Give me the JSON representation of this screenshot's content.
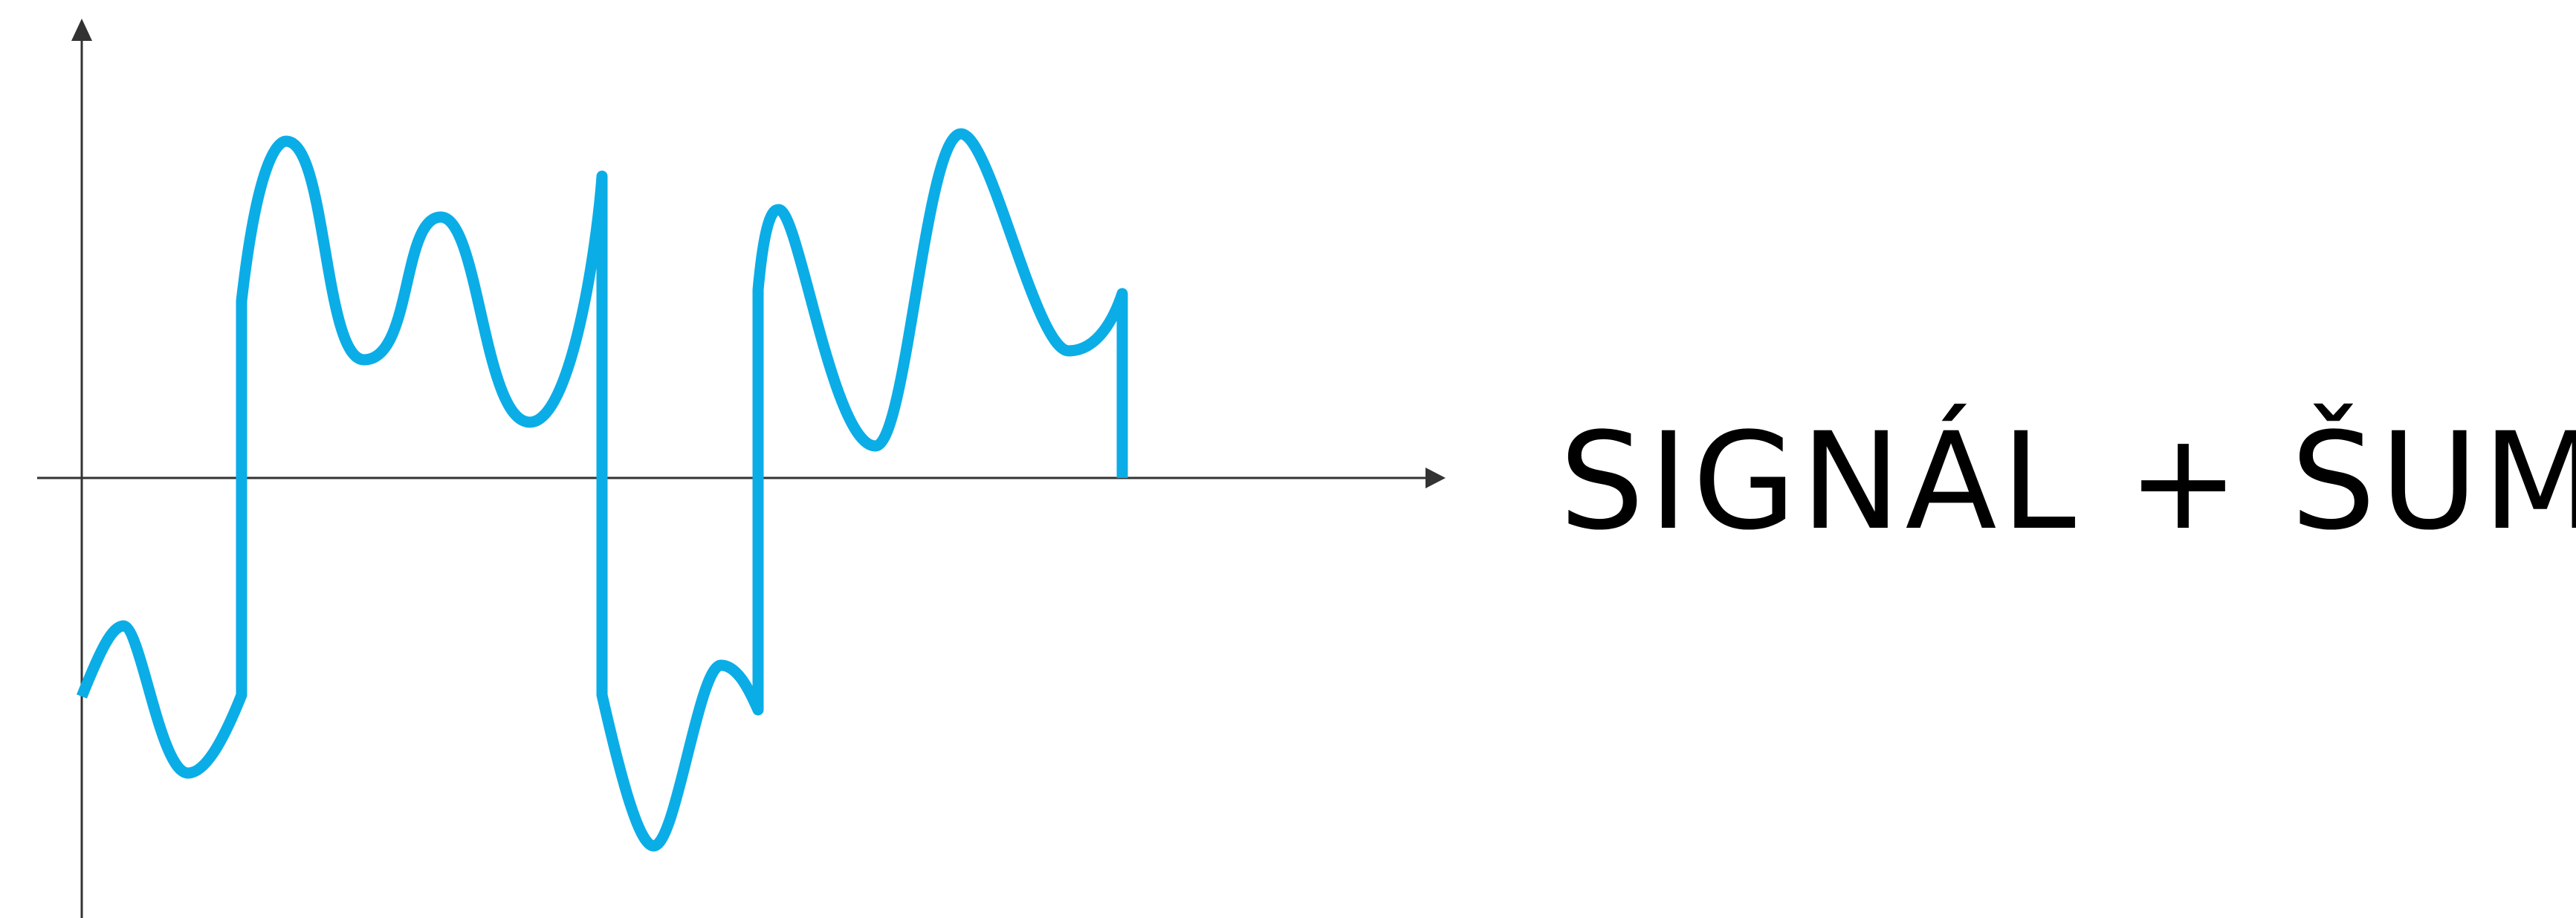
{
  "colors": {
    "signal": "#0bade7",
    "axis": "#333333",
    "text": "#000000"
  },
  "label": "SIGNÁL + ŠUM"
}
